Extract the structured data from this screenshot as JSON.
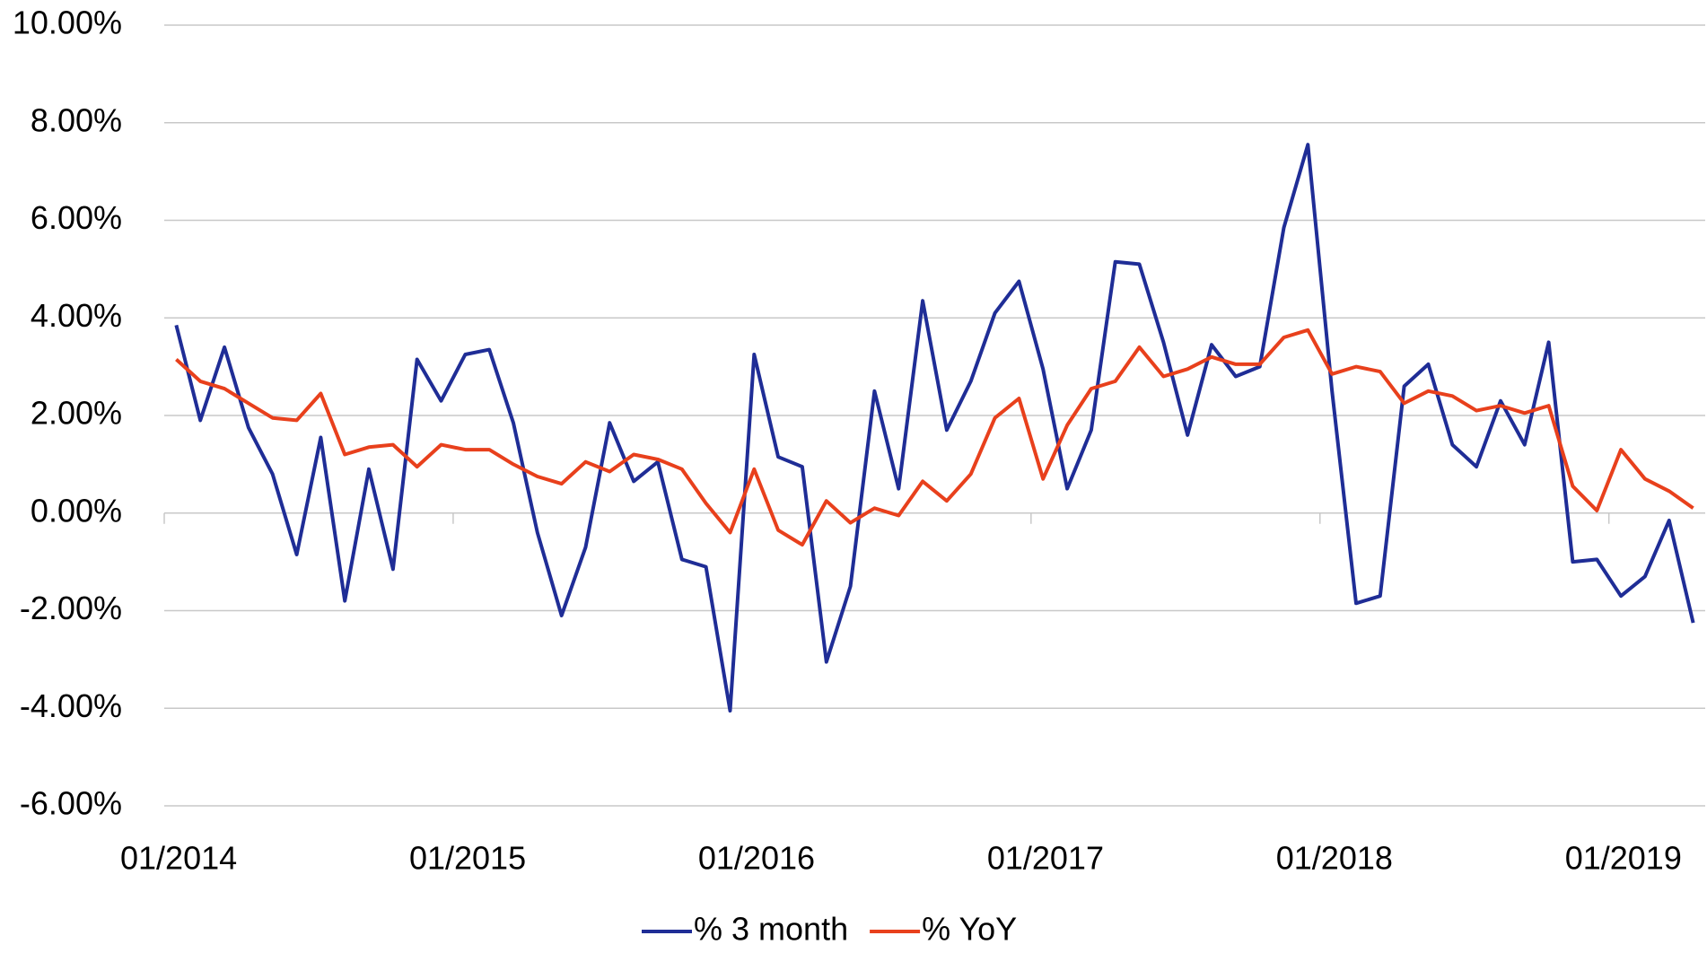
{
  "chart_data": {
    "type": "line",
    "categories": [
      "01/2014",
      null,
      null,
      null,
      null,
      null,
      null,
      null,
      null,
      null,
      null,
      null,
      "01/2015",
      null,
      null,
      null,
      null,
      null,
      null,
      null,
      null,
      null,
      null,
      null,
      "01/2016",
      null,
      null,
      null,
      null,
      null,
      null,
      null,
      null,
      null,
      null,
      null,
      "01/2017",
      null,
      null,
      null,
      null,
      null,
      null,
      null,
      null,
      null,
      null,
      null,
      "01/2018",
      null,
      null,
      null,
      null,
      null,
      null,
      null,
      null,
      null,
      null,
      null,
      "01/2019",
      null,
      null,
      null
    ],
    "series": [
      {
        "name": "% 3 month",
        "color": "#1f2d96",
        "values": [
          3.85,
          1.9,
          3.4,
          1.75,
          0.8,
          -0.85,
          1.55,
          -1.8,
          0.9,
          -1.15,
          3.15,
          2.3,
          3.25,
          3.35,
          1.85,
          -0.4,
          -2.1,
          -0.7,
          1.85,
          0.65,
          1.05,
          -0.95,
          -1.1,
          -4.05,
          3.25,
          1.15,
          0.95,
          -3.05,
          -1.5,
          2.5,
          0.5,
          4.35,
          1.7,
          2.7,
          4.1,
          4.75,
          2.95,
          0.5,
          1.7,
          5.15,
          5.1,
          3.5,
          1.6,
          3.45,
          2.8,
          3.0,
          5.85,
          7.55,
          2.5,
          -1.85,
          -1.7,
          2.6,
          3.05,
          1.4,
          0.95,
          2.3,
          1.4,
          3.5,
          -1.0,
          -0.95,
          -1.7,
          -1.3,
          -0.15,
          -2.25
        ]
      },
      {
        "name": "% YoY",
        "color": "#e8401c",
        "values": [
          3.15,
          2.7,
          2.55,
          2.25,
          1.95,
          1.9,
          2.45,
          1.2,
          1.35,
          1.4,
          0.95,
          1.4,
          1.3,
          1.3,
          1.0,
          0.75,
          0.6,
          1.05,
          0.85,
          1.2,
          1.1,
          0.9,
          0.2,
          -0.4,
          0.9,
          -0.35,
          -0.65,
          0.25,
          -0.2,
          0.1,
          -0.05,
          0.65,
          0.25,
          0.8,
          1.95,
          2.35,
          0.7,
          1.8,
          2.55,
          2.7,
          3.4,
          2.8,
          2.95,
          3.2,
          3.05,
          3.05,
          3.6,
          3.75,
          2.85,
          3.0,
          2.9,
          2.25,
          2.5,
          2.4,
          2.1,
          2.2,
          2.05,
          2.2,
          0.55,
          0.05,
          1.3,
          0.7,
          0.45,
          0.1
        ]
      }
    ],
    "ylim": [
      -6,
      10
    ],
    "yticks": [
      {
        "value": -6,
        "label": "-6.00%"
      },
      {
        "value": -4,
        "label": "-4.00%"
      },
      {
        "value": -2,
        "label": "-2.00%"
      },
      {
        "value": 0,
        "label": "0.00%"
      },
      {
        "value": 2,
        "label": "2.00%"
      },
      {
        "value": 4,
        "label": "4.00%"
      },
      {
        "value": 6,
        "label": "6.00%"
      },
      {
        "value": 8,
        "label": "8.00%"
      },
      {
        "value": 10,
        "label": "10.00%"
      }
    ],
    "grid": true,
    "legend": "bottom"
  }
}
